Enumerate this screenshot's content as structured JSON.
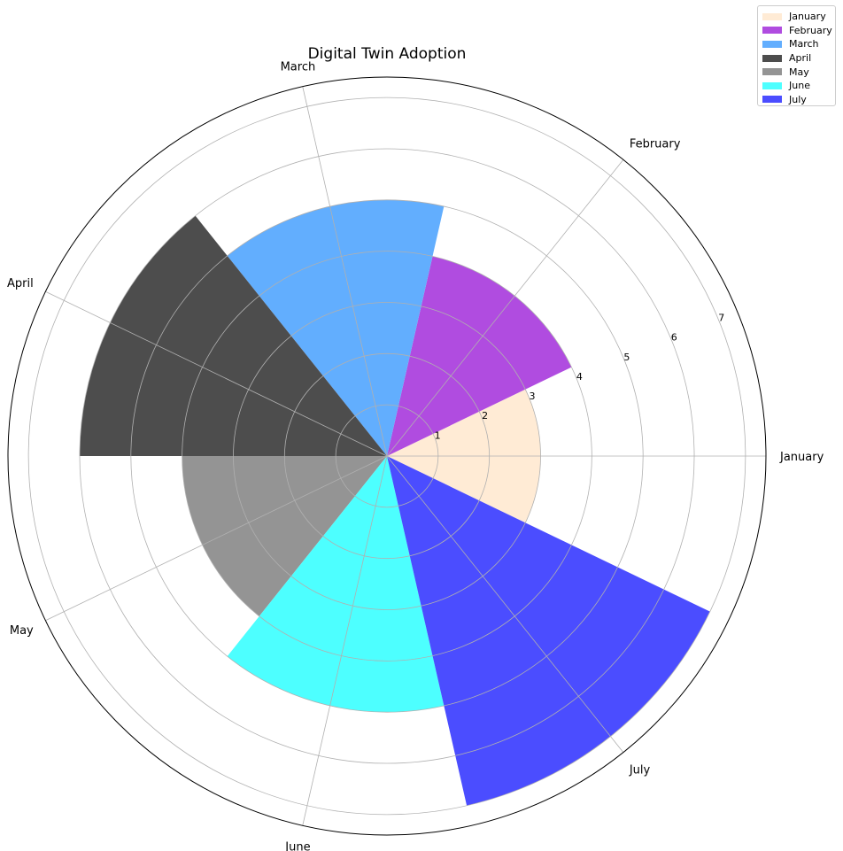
{
  "chart_data": {
    "type": "polar-bar",
    "title": "Digital Twin Adoption",
    "categories": [
      "January",
      "February",
      "March",
      "April",
      "May",
      "June",
      "July"
    ],
    "values": [
      3,
      4,
      5,
      6,
      4,
      5,
      7
    ],
    "colors": [
      "#ffebd5",
      "#b04ce0",
      "#62aefe",
      "#4d4d4d",
      "#949494",
      "#4dffff",
      "#4b4dff"
    ],
    "radial_ticks": [
      "1",
      "2",
      "3",
      "4",
      "5",
      "6",
      "7"
    ],
    "rmax": 7.4,
    "grid": true,
    "legend_position": "top-right"
  }
}
